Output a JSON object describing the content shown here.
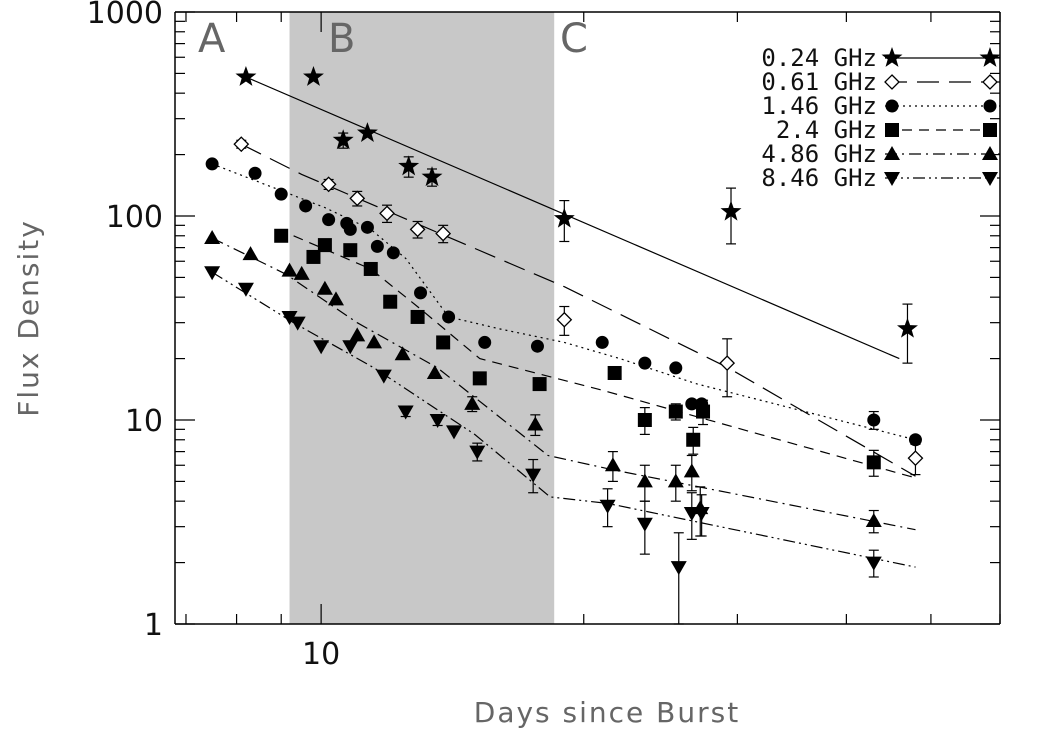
{
  "chart_data": {
    "type": "scatter",
    "title": "",
    "xlabel": "Days since Burst",
    "ylabel": "Flux Density",
    "x_scale": "log",
    "y_scale": "log",
    "xlim": [
      6.8,
      60
    ],
    "ylim": [
      1,
      1000
    ],
    "x_tick_labels": [
      "10"
    ],
    "y_tick_labels": [
      "1",
      "10",
      "100",
      "1000"
    ],
    "grid": false,
    "legend_position": "top-right",
    "regions": [
      {
        "label": "A"
      },
      {
        "label": "B",
        "x_range": [
          9.2,
          18.5
        ],
        "shaded": true
      },
      {
        "label": "C"
      }
    ],
    "series": [
      {
        "name": "0.24 GHz",
        "marker": "star",
        "line": "solid",
        "points": [
          [
            8.2,
            480
          ],
          [
            9.8,
            480
          ],
          [
            10.6,
            235
          ],
          [
            11.3,
            255
          ],
          [
            12.6,
            175
          ],
          [
            13.4,
            155
          ],
          [
            19,
            97
          ],
          [
            29.5,
            105
          ],
          [
            47,
            28
          ]
        ],
        "errors": [
          0,
          0,
          20,
          0,
          20,
          15,
          22,
          32,
          9
        ],
        "fit": [
          [
            8.2,
            480
          ],
          [
            46,
            20
          ]
        ]
      },
      {
        "name": "0.61 GHz",
        "marker": "diamond-open",
        "line": "long-dash",
        "points": [
          [
            8.1,
            225
          ],
          [
            10.2,
            143
          ],
          [
            11,
            122
          ],
          [
            11.9,
            103
          ],
          [
            12.9,
            86
          ],
          [
            13.8,
            82
          ],
          [
            19,
            31
          ],
          [
            29.2,
            19
          ],
          [
            48,
            6.5
          ]
        ],
        "errors": [
          10,
          8,
          10,
          10,
          8,
          8,
          5,
          6,
          1.1
        ],
        "fit": [
          [
            8.1,
            225
          ],
          [
            9.5,
            160
          ],
          [
            19,
            45
          ],
          [
            29.3,
            18
          ],
          [
            48,
            5.3
          ]
        ]
      },
      {
        "name": "1.46 GHz",
        "marker": "circle",
        "line": "dotted",
        "points": [
          [
            7.5,
            180
          ],
          [
            8.4,
            162
          ],
          [
            9,
            128
          ],
          [
            9.6,
            112
          ],
          [
            10.2,
            96
          ],
          [
            10.7,
            92
          ],
          [
            10.8,
            86
          ],
          [
            11.3,
            88
          ],
          [
            11.6,
            71
          ],
          [
            12.1,
            66
          ],
          [
            13,
            42
          ],
          [
            14,
            32
          ],
          [
            15.4,
            24
          ],
          [
            17.7,
            23
          ],
          [
            21,
            24
          ],
          [
            23.5,
            19
          ],
          [
            25.5,
            18
          ],
          [
            26.6,
            12
          ],
          [
            27.3,
            12
          ],
          [
            43,
            10
          ],
          [
            48,
            8
          ]
        ],
        "errors": [
          0,
          0,
          0,
          0,
          0,
          0,
          0,
          0,
          0,
          0,
          0,
          0,
          0,
          0,
          0,
          0,
          0,
          0,
          0,
          1,
          0
        ],
        "fit": [
          [
            7.5,
            180
          ],
          [
            10.1,
            110
          ],
          [
            11.4,
            86
          ],
          [
            12.5,
            62
          ],
          [
            14,
            32
          ],
          [
            16,
            28
          ],
          [
            19,
            24
          ],
          [
            22,
            20
          ],
          [
            27,
            15
          ],
          [
            48,
            8
          ]
        ]
      },
      {
        "name": "2.4 GHz",
        "marker": "square",
        "line": "dashed",
        "points": [
          [
            9,
            80
          ],
          [
            9.8,
            63
          ],
          [
            10.1,
            72
          ],
          [
            10.8,
            68
          ],
          [
            11.4,
            55
          ],
          [
            12,
            38
          ],
          [
            12.9,
            32
          ],
          [
            13.8,
            24
          ],
          [
            15.2,
            16
          ],
          [
            17.8,
            15
          ],
          [
            21.7,
            17
          ],
          [
            23.5,
            10
          ],
          [
            25.5,
            11
          ],
          [
            26.7,
            8
          ],
          [
            27.4,
            11
          ],
          [
            43,
            6.2
          ]
        ],
        "errors": [
          0,
          0,
          0,
          0,
          0,
          0,
          0,
          0,
          0,
          0,
          0,
          1.5,
          1,
          1.2,
          1.5,
          0.9
        ],
        "fit": [
          [
            9.3,
            80
          ],
          [
            11.4,
            55
          ],
          [
            13,
            35
          ],
          [
            15.2,
            20
          ],
          [
            21,
            14
          ],
          [
            48,
            5.2
          ]
        ]
      },
      {
        "name": "4.86 GHz",
        "marker": "triangle-up",
        "line": "dash-dot",
        "points": [
          [
            7.5,
            78
          ],
          [
            8.3,
            65
          ],
          [
            9.2,
            54
          ],
          [
            9.5,
            52
          ],
          [
            10.1,
            44
          ],
          [
            10.4,
            39
          ],
          [
            11,
            26
          ],
          [
            11.5,
            24
          ],
          [
            12.4,
            21
          ],
          [
            13.5,
            17
          ],
          [
            14.9,
            12
          ],
          [
            17.6,
            9.5
          ],
          [
            21.6,
            6
          ],
          [
            23.5,
            5
          ],
          [
            25.5,
            5
          ],
          [
            26.6,
            5.6
          ],
          [
            27.2,
            3.7
          ],
          [
            43,
            3.2
          ]
        ],
        "errors": [
          0,
          0,
          0,
          0,
          0,
          0,
          0,
          0,
          0,
          0,
          1,
          1.1,
          1,
          1,
          1,
          1.1,
          1,
          0.4
        ],
        "fit": [
          [
            7.5,
            78
          ],
          [
            9.1,
            52
          ],
          [
            11,
            30
          ],
          [
            13.6,
            18
          ],
          [
            18.2,
            6.7
          ],
          [
            21.6,
            5.7
          ],
          [
            48,
            2.9
          ]
        ]
      },
      {
        "name": "8.46 GHz",
        "marker": "triangle-down",
        "line": "dash-dot-dot",
        "points": [
          [
            7.5,
            53
          ],
          [
            8.2,
            44
          ],
          [
            9.2,
            32
          ],
          [
            9.4,
            30
          ],
          [
            10,
            23
          ],
          [
            10.8,
            23
          ],
          [
            11.8,
            16.5
          ],
          [
            12.5,
            11
          ],
          [
            13.6,
            10
          ],
          [
            14.2,
            8.8
          ],
          [
            15.1,
            7
          ],
          [
            17.5,
            5.4
          ],
          [
            21.3,
            3.8
          ],
          [
            23.5,
            3.1
          ],
          [
            25.7,
            1.9
          ],
          [
            26.6,
            3.5
          ],
          [
            27.3,
            3.5
          ],
          [
            43,
            2
          ]
        ],
        "errors": [
          0,
          0,
          0,
          0,
          0,
          0,
          0,
          0.6,
          0.6,
          0,
          0.7,
          1,
          0.8,
          0.9,
          0.9,
          0.9,
          0.8,
          0.3
        ],
        "fit": [
          [
            7.5,
            53
          ],
          [
            9.3,
            30
          ],
          [
            11.5,
            18
          ],
          [
            15,
            8.5
          ],
          [
            18.3,
            4.2
          ],
          [
            21.3,
            3.9
          ],
          [
            48,
            1.9
          ]
        ]
      }
    ]
  }
}
